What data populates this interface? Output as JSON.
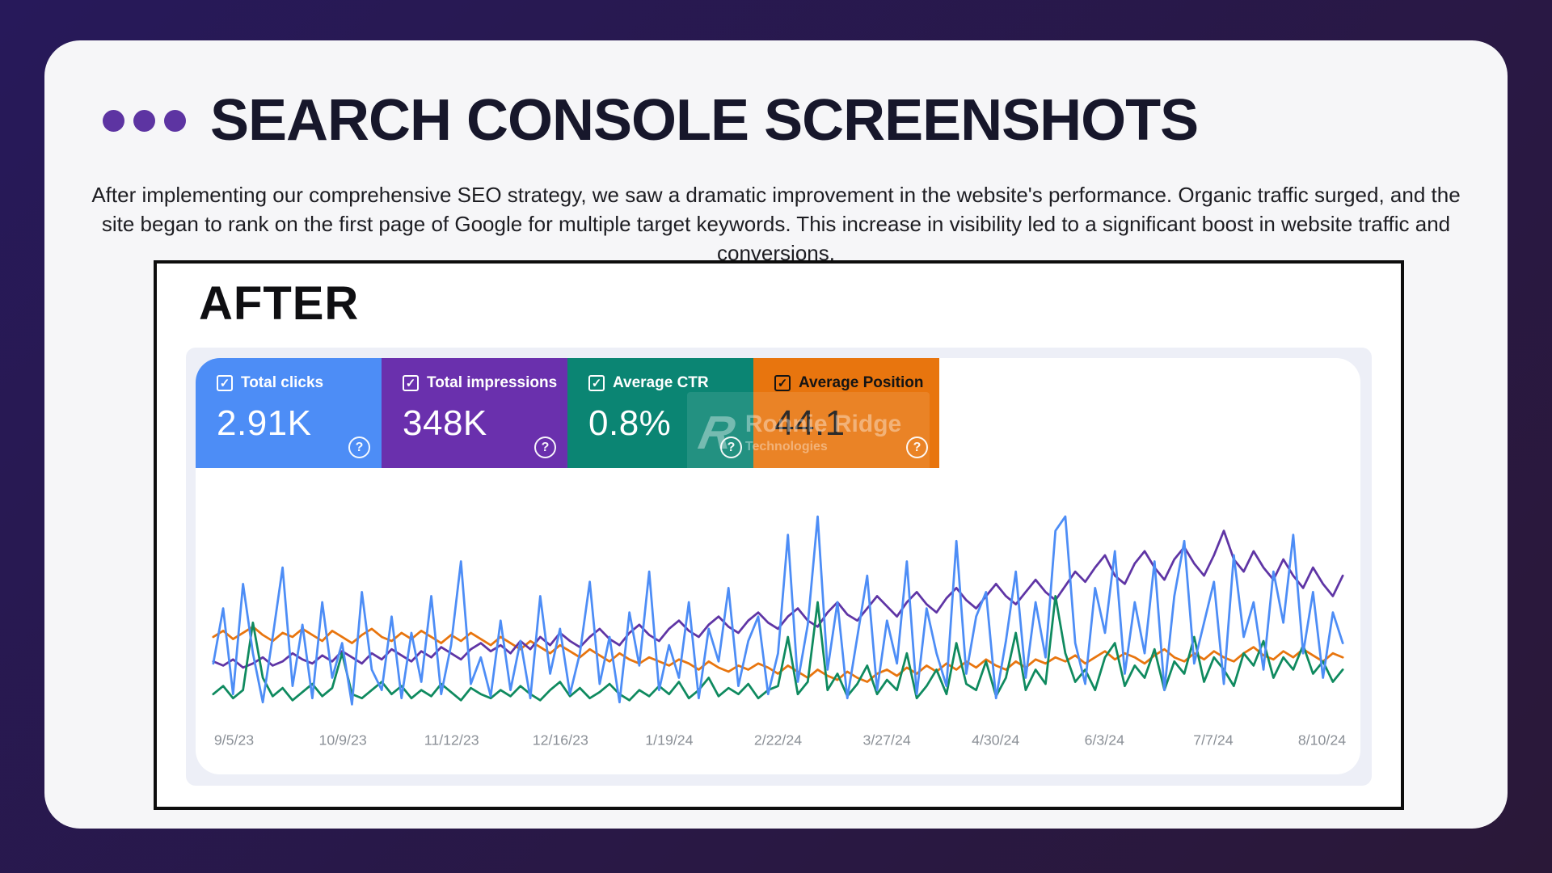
{
  "slide": {
    "title": "SEARCH CONSOLE SCREENSHOTS",
    "description": "After implementing our comprehensive SEO strategy, we saw a dramatic improvement in the website's performance. Organic traffic surged, and the site began to rank on the first page of Google for multiple target keywords. This increase in visibility led to a significant boost in website traffic and conversions.",
    "accent_dot_color": "#5d34a2"
  },
  "screenshot": {
    "label": "AFTER",
    "watermark": {
      "initial": "R",
      "line1": "Ronnie Ridge",
      "line2": "Technologies"
    },
    "icons": {
      "checkbox_checked": "✓",
      "help": "?"
    },
    "metrics": [
      {
        "label": "Total clicks",
        "value": "2.91K",
        "color": "#4d8df6",
        "text_color": "#ffffff",
        "checked": true
      },
      {
        "label": "Total impressions",
        "value": "348K",
        "color": "#6a30ad",
        "text_color": "#ffffff",
        "checked": true
      },
      {
        "label": "Average CTR",
        "value": "0.8%",
        "color": "#0b8573",
        "text_color": "#ffffff",
        "checked": true
      },
      {
        "label": "Average Position",
        "value": "44.1",
        "color": "#e8750e",
        "text_color": "#141414",
        "checked": true
      }
    ]
  },
  "chart_data": {
    "type": "line",
    "title": "",
    "xlabel": "",
    "ylabel": "",
    "grid": false,
    "legend_position": "none (series identified by metric cards above)",
    "ylim": [
      0,
      100
    ],
    "x_tick_labels": [
      "9/5/23",
      "10/9/23",
      "11/12/23",
      "12/16/23",
      "1/19/24",
      "2/22/24",
      "3/27/24",
      "4/30/24",
      "6/3/24",
      "7/7/24",
      "8/10/24"
    ],
    "tick_label_color": "#8b9097",
    "series": [
      {
        "name": "Total clicks",
        "color": "#4d8df6",
        "values": [
          25,
          52,
          10,
          64,
          30,
          6,
          38,
          72,
          14,
          44,
          8,
          55,
          18,
          35,
          5,
          60,
          22,
          12,
          48,
          8,
          40,
          16,
          58,
          10,
          34,
          75,
          15,
          28,
          9,
          46,
          12,
          36,
          8,
          58,
          20,
          42,
          10,
          30,
          65,
          15,
          38,
          6,
          50,
          24,
          70,
          12,
          34,
          18,
          55,
          8,
          42,
          26,
          62,
          14,
          36,
          48,
          10,
          30,
          88,
          16,
          44,
          97,
          22,
          55,
          8,
          38,
          68,
          12,
          46,
          25,
          75,
          10,
          52,
          30,
          14,
          85,
          20,
          48,
          60,
          8,
          36,
          70,
          18,
          55,
          28,
          90,
          97,
          35,
          15,
          62,
          40,
          80,
          20,
          55,
          30,
          75,
          12,
          58,
          85,
          25,
          45,
          65,
          15,
          78,
          38,
          55,
          22,
          70,
          45,
          88,
          30,
          60,
          18,
          50,
          35
        ]
      },
      {
        "name": "Total impressions",
        "color": "#5f35a5",
        "values": [
          26,
          24,
          27,
          23,
          25,
          28,
          24,
          26,
          30,
          27,
          25,
          29,
          26,
          31,
          28,
          25,
          30,
          27,
          32,
          29,
          26,
          31,
          28,
          33,
          30,
          27,
          32,
          35,
          31,
          34,
          30,
          36,
          32,
          38,
          34,
          40,
          36,
          33,
          38,
          42,
          37,
          34,
          40,
          44,
          39,
          36,
          42,
          46,
          41,
          38,
          44,
          48,
          43,
          40,
          46,
          50,
          45,
          42,
          48,
          52,
          46,
          43,
          50,
          55,
          49,
          46,
          52,
          58,
          53,
          48,
          55,
          60,
          54,
          50,
          57,
          62,
          56,
          52,
          58,
          64,
          58,
          54,
          60,
          66,
          60,
          56,
          63,
          70,
          65,
          72,
          78,
          68,
          64,
          74,
          80,
          72,
          66,
          76,
          82,
          74,
          68,
          78,
          90,
          76,
          70,
          80,
          72,
          66,
          76,
          68,
          62,
          72,
          64,
          58,
          68
        ]
      },
      {
        "name": "Average CTR",
        "color": "#0f8a5f",
        "values": [
          10,
          14,
          8,
          12,
          45,
          18,
          9,
          13,
          7,
          11,
          15,
          9,
          13,
          30,
          10,
          8,
          12,
          16,
          10,
          14,
          8,
          12,
          9,
          15,
          11,
          7,
          13,
          10,
          8,
          12,
          9,
          14,
          10,
          7,
          12,
          16,
          9,
          13,
          8,
          11,
          15,
          10,
          7,
          12,
          9,
          14,
          10,
          16,
          8,
          12,
          18,
          9,
          13,
          10,
          15,
          8,
          12,
          14,
          38,
          10,
          16,
          55,
          12,
          20,
          9,
          15,
          24,
          10,
          17,
          12,
          30,
          8,
          14,
          22,
          10,
          35,
          15,
          12,
          26,
          9,
          18,
          40,
          12,
          22,
          15,
          58,
          30,
          16,
          22,
          12,
          28,
          35,
          14,
          24,
          18,
          32,
          12,
          26,
          20,
          38,
          16,
          28,
          22,
          14,
          30,
          24,
          36,
          18,
          28,
          22,
          34,
          20,
          26,
          16,
          22
        ]
      },
      {
        "name": "Average Position",
        "color": "#e8750e",
        "values": [
          38,
          41,
          37,
          40,
          43,
          39,
          36,
          40,
          38,
          42,
          39,
          36,
          41,
          38,
          35,
          39,
          42,
          38,
          36,
          40,
          37,
          41,
          38,
          35,
          39,
          36,
          40,
          37,
          34,
          38,
          35,
          32,
          36,
          33,
          30,
          34,
          31,
          28,
          32,
          29,
          26,
          30,
          27,
          25,
          28,
          26,
          24,
          27,
          25,
          22,
          26,
          23,
          21,
          24,
          22,
          25,
          23,
          20,
          24,
          21,
          18,
          22,
          19,
          17,
          21,
          18,
          16,
          20,
          22,
          19,
          23,
          20,
          24,
          21,
          25,
          22,
          26,
          23,
          27,
          24,
          22,
          26,
          23,
          27,
          25,
          28,
          26,
          29,
          25,
          28,
          31,
          27,
          30,
          28,
          25,
          29,
          32,
          28,
          26,
          30,
          27,
          31,
          28,
          26,
          30,
          33,
          29,
          27,
          31,
          28,
          32,
          29,
          26,
          30,
          28
        ]
      }
    ]
  }
}
